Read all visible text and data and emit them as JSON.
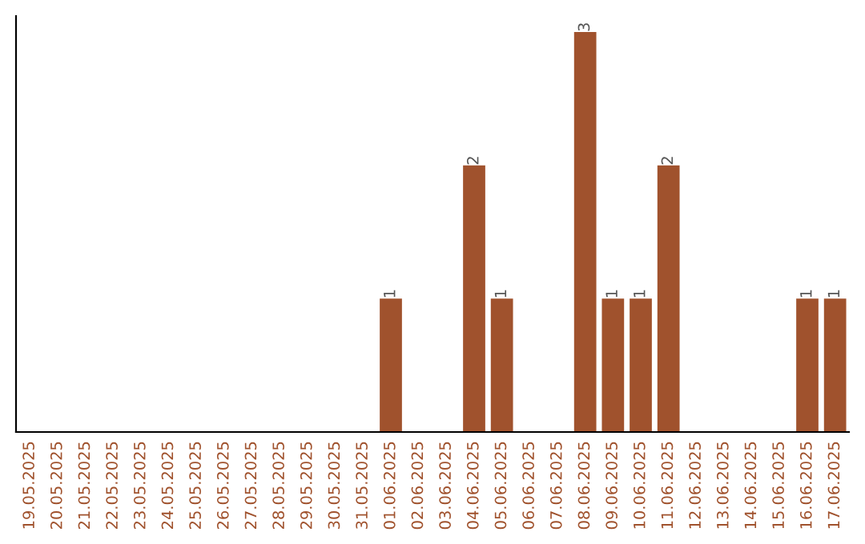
{
  "chart_data": {
    "type": "bar",
    "categories": [
      "19.05.2025",
      "20.05.2025",
      "21.05.2025",
      "22.05.2025",
      "23.05.2025",
      "24.05.2025",
      "25.05.2025",
      "26.05.2025",
      "27.05.2025",
      "28.05.2025",
      "29.05.2025",
      "30.05.2025",
      "31.05.2025",
      "01.06.2025",
      "02.06.2025",
      "03.06.2025",
      "04.06.2025",
      "05.06.2025",
      "06.06.2025",
      "07.06.2025",
      "08.06.2025",
      "09.06.2025",
      "10.06.2025",
      "11.06.2025",
      "12.06.2025",
      "13.06.2025",
      "14.06.2025",
      "15.06.2025",
      "16.06.2025",
      "17.06.2025"
    ],
    "values": [
      null,
      null,
      null,
      null,
      null,
      null,
      null,
      null,
      null,
      null,
      null,
      null,
      null,
      1,
      null,
      null,
      2,
      1,
      null,
      null,
      3,
      1,
      1,
      2,
      null,
      null,
      null,
      null,
      1,
      1
    ],
    "color": "#a0522d",
    "data_labels": true
  }
}
